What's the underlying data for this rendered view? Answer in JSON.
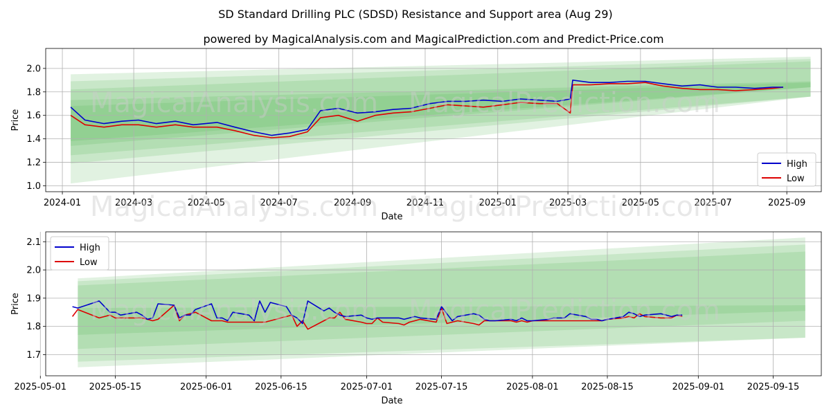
{
  "title": "SD Standard Drilling PLC (SDSD) Resistance and Support area (Aug 29)",
  "subtitle": "powered by MagicalAnalysis.com and MagicalPrediction.com and Predict-Price.com",
  "watermarks": [
    "MagicalAnalysis.com",
    "MagicalPrediction.com"
  ],
  "colors": {
    "high": "#0000cc",
    "low": "#dd0000",
    "band": "#4caf50",
    "grid": "#b0b0b0",
    "bg": "#ffffff"
  },
  "chart_data": [
    {
      "type": "line",
      "xlabel": "Date",
      "ylabel": "Price",
      "xlim": [
        "2023-12-18",
        "2025-09-30"
      ],
      "ylim": [
        0.95,
        2.17
      ],
      "xticks": [
        "2024-01",
        "2024-03",
        "2024-05",
        "2024-07",
        "2024-09",
        "2024-11",
        "2025-01",
        "2025-03",
        "2025-05",
        "2025-07",
        "2025-09"
      ],
      "yticks": [
        "1.0",
        "1.2",
        "1.4",
        "1.6",
        "1.8",
        "2.0"
      ],
      "legend": {
        "position": "bottom-right",
        "entries": [
          "High",
          "Low"
        ]
      },
      "grid": true,
      "bands": [
        {
          "start": "2024-01-08",
          "end": "2025-09-21",
          "y0": [
            1.02,
            1.95,
            1.76,
            2.1
          ]
        },
        {
          "start": "2024-01-08",
          "end": "2025-09-21",
          "y0": [
            1.19,
            1.89,
            1.76,
            2.08
          ]
        },
        {
          "start": "2024-01-08",
          "end": "2025-09-21",
          "y0": [
            1.26,
            1.82,
            1.76,
            2.06
          ]
        },
        {
          "start": "2024-01-08",
          "end": "2025-09-21",
          "y0": [
            1.34,
            1.73,
            1.84,
            1.89
          ]
        },
        {
          "start": "2024-01-08",
          "end": "2025-09-21",
          "y0": [
            1.38,
            1.68,
            1.84,
            1.88
          ]
        }
      ],
      "series": [
        {
          "name": "High",
          "x": [
            "2024-01-08",
            "2024-01-20",
            "2024-02-05",
            "2024-02-20",
            "2024-03-05",
            "2024-03-20",
            "2024-04-05",
            "2024-04-20",
            "2024-05-10",
            "2024-05-25",
            "2024-06-10",
            "2024-06-25",
            "2024-07-10",
            "2024-07-25",
            "2024-08-05",
            "2024-08-20",
            "2024-09-05",
            "2024-09-20",
            "2024-10-05",
            "2024-10-20",
            "2024-11-05",
            "2024-11-20",
            "2024-12-05",
            "2024-12-20",
            "2025-01-05",
            "2025-01-20",
            "2025-02-05",
            "2025-02-20",
            "2025-03-03",
            "2025-03-05",
            "2025-03-20",
            "2025-04-05",
            "2025-04-20",
            "2025-05-05",
            "2025-05-20",
            "2025-06-05",
            "2025-06-20",
            "2025-07-05",
            "2025-07-20",
            "2025-08-05",
            "2025-08-20",
            "2025-08-29"
          ],
          "values": [
            1.67,
            1.56,
            1.53,
            1.55,
            1.56,
            1.53,
            1.55,
            1.52,
            1.54,
            1.5,
            1.46,
            1.43,
            1.45,
            1.48,
            1.64,
            1.66,
            1.62,
            1.63,
            1.65,
            1.66,
            1.7,
            1.72,
            1.72,
            1.73,
            1.72,
            1.74,
            1.73,
            1.72,
            1.74,
            1.9,
            1.88,
            1.88,
            1.89,
            1.89,
            1.87,
            1.85,
            1.86,
            1.84,
            1.84,
            1.83,
            1.84,
            1.84
          ]
        },
        {
          "name": "Low",
          "x": [
            "2024-01-08",
            "2024-01-20",
            "2024-02-05",
            "2024-02-20",
            "2024-03-05",
            "2024-03-20",
            "2024-04-05",
            "2024-04-20",
            "2024-05-10",
            "2024-05-25",
            "2024-06-10",
            "2024-06-25",
            "2024-07-10",
            "2024-07-25",
            "2024-08-05",
            "2024-08-20",
            "2024-09-05",
            "2024-09-20",
            "2024-10-05",
            "2024-10-20",
            "2024-11-05",
            "2024-11-20",
            "2024-12-05",
            "2024-12-20",
            "2025-01-05",
            "2025-01-20",
            "2025-02-05",
            "2025-02-20",
            "2025-03-03",
            "2025-03-05",
            "2025-03-20",
            "2025-04-05",
            "2025-04-20",
            "2025-05-05",
            "2025-05-20",
            "2025-06-05",
            "2025-06-20",
            "2025-07-05",
            "2025-07-20",
            "2025-08-05",
            "2025-08-20",
            "2025-08-29"
          ],
          "values": [
            1.6,
            1.52,
            1.5,
            1.52,
            1.52,
            1.5,
            1.52,
            1.5,
            1.5,
            1.47,
            1.43,
            1.41,
            1.42,
            1.46,
            1.58,
            1.6,
            1.55,
            1.6,
            1.62,
            1.63,
            1.66,
            1.69,
            1.68,
            1.67,
            1.69,
            1.71,
            1.7,
            1.7,
            1.62,
            1.86,
            1.86,
            1.87,
            1.87,
            1.88,
            1.85,
            1.83,
            1.82,
            1.82,
            1.81,
            1.82,
            1.83,
            1.84
          ]
        }
      ]
    },
    {
      "type": "line",
      "xlabel": "Date",
      "ylabel": "Price",
      "xlim": [
        "2025-05-02",
        "2025-09-24"
      ],
      "ylim": [
        1.625,
        2.135
      ],
      "xticks": [
        "2025-05-01",
        "2025-05-15",
        "2025-06-01",
        "2025-06-15",
        "2025-07-01",
        "2025-07-15",
        "2025-08-01",
        "2025-08-15",
        "2025-09-01",
        "2025-09-15"
      ],
      "yticks": [
        "1.7",
        "1.8",
        "1.9",
        "2.0",
        "2.1"
      ],
      "legend": {
        "position": "top-left",
        "entries": [
          "High",
          "Low"
        ]
      },
      "grid": true,
      "bands": [
        {
          "start": "2025-05-08",
          "end": "2025-09-21",
          "y0": [
            1.655,
            1.97,
            1.76,
            2.115
          ]
        },
        {
          "start": "2025-05-08",
          "end": "2025-09-21",
          "y0": [
            1.675,
            1.96,
            1.76,
            2.09
          ]
        },
        {
          "start": "2025-05-08",
          "end": "2025-09-21",
          "y0": [
            1.72,
            1.945,
            1.82,
            2.065
          ]
        },
        {
          "start": "2025-05-08",
          "end": "2025-09-21",
          "y0": [
            1.77,
            1.865,
            1.855,
            1.875
          ]
        }
      ],
      "series": [
        {
          "name": "High",
          "x": [
            "2025-05-07",
            "2025-05-08",
            "2025-05-12",
            "2025-05-13",
            "2025-05-14",
            "2025-05-15",
            "2025-05-16",
            "2025-05-19",
            "2025-05-20",
            "2025-05-21",
            "2025-05-22",
            "2025-05-23",
            "2025-05-26",
            "2025-05-27",
            "2025-05-28",
            "2025-05-29",
            "2025-05-30",
            "2025-06-02",
            "2025-06-03",
            "2025-06-04",
            "2025-06-05",
            "2025-06-06",
            "2025-06-09",
            "2025-06-10",
            "2025-06-11",
            "2025-06-12",
            "2025-06-13",
            "2025-06-16",
            "2025-06-17",
            "2025-06-18",
            "2025-06-19",
            "2025-06-20",
            "2025-06-23",
            "2025-06-24",
            "2025-06-25",
            "2025-06-26",
            "2025-06-27",
            "2025-06-30",
            "2025-07-01",
            "2025-07-02",
            "2025-07-03",
            "2025-07-04",
            "2025-07-07",
            "2025-07-08",
            "2025-07-09",
            "2025-07-10",
            "2025-07-11",
            "2025-07-14",
            "2025-07-15",
            "2025-07-16",
            "2025-07-17",
            "2025-07-18",
            "2025-07-21",
            "2025-07-22",
            "2025-07-23",
            "2025-07-24",
            "2025-07-25",
            "2025-07-28",
            "2025-07-29",
            "2025-07-30",
            "2025-07-31",
            "2025-08-01",
            "2025-08-04",
            "2025-08-05",
            "2025-08-06",
            "2025-08-07",
            "2025-08-08",
            "2025-08-11",
            "2025-08-12",
            "2025-08-13",
            "2025-08-14",
            "2025-08-15",
            "2025-08-18",
            "2025-08-19",
            "2025-08-20",
            "2025-08-21",
            "2025-08-22",
            "2025-08-25",
            "2025-08-26",
            "2025-08-27",
            "2025-08-28",
            "2025-08-29"
          ],
          "values": [
            1.87,
            1.865,
            1.89,
            1.87,
            1.85,
            1.85,
            1.84,
            1.85,
            1.84,
            1.825,
            1.83,
            1.88,
            1.875,
            1.83,
            1.84,
            1.84,
            1.86,
            1.88,
            1.83,
            1.83,
            1.82,
            1.85,
            1.84,
            1.82,
            1.89,
            1.85,
            1.885,
            1.87,
            1.84,
            1.83,
            1.81,
            1.89,
            1.855,
            1.865,
            1.85,
            1.84,
            1.835,
            1.84,
            1.83,
            1.825,
            1.83,
            1.83,
            1.83,
            1.825,
            1.83,
            1.835,
            1.83,
            1.825,
            1.87,
            1.845,
            1.82,
            1.835,
            1.845,
            1.84,
            1.825,
            1.82,
            1.82,
            1.825,
            1.82,
            1.83,
            1.82,
            1.82,
            1.825,
            1.83,
            1.83,
            1.83,
            1.845,
            1.835,
            1.825,
            1.825,
            1.82,
            1.825,
            1.835,
            1.85,
            1.845,
            1.835,
            1.84,
            1.845,
            1.84,
            1.835,
            1.84,
            1.84
          ]
        },
        {
          "name": "Low",
          "x": [
            "2025-05-07",
            "2025-05-08",
            "2025-05-12",
            "2025-05-13",
            "2025-05-14",
            "2025-05-15",
            "2025-05-16",
            "2025-05-19",
            "2025-05-20",
            "2025-05-21",
            "2025-05-22",
            "2025-05-23",
            "2025-05-26",
            "2025-05-27",
            "2025-05-28",
            "2025-05-29",
            "2025-05-30",
            "2025-06-02",
            "2025-06-03",
            "2025-06-04",
            "2025-06-05",
            "2025-06-06",
            "2025-06-09",
            "2025-06-10",
            "2025-06-11",
            "2025-06-12",
            "2025-06-13",
            "2025-06-16",
            "2025-06-17",
            "2025-06-18",
            "2025-06-19",
            "2025-06-20",
            "2025-06-23",
            "2025-06-24",
            "2025-06-25",
            "2025-06-26",
            "2025-06-27",
            "2025-06-30",
            "2025-07-01",
            "2025-07-02",
            "2025-07-03",
            "2025-07-04",
            "2025-07-07",
            "2025-07-08",
            "2025-07-09",
            "2025-07-10",
            "2025-07-11",
            "2025-07-14",
            "2025-07-15",
            "2025-07-16",
            "2025-07-17",
            "2025-07-18",
            "2025-07-21",
            "2025-07-22",
            "2025-07-23",
            "2025-07-24",
            "2025-07-25",
            "2025-07-28",
            "2025-07-29",
            "2025-07-30",
            "2025-07-31",
            "2025-08-01",
            "2025-08-04",
            "2025-08-05",
            "2025-08-06",
            "2025-08-07",
            "2025-08-08",
            "2025-08-11",
            "2025-08-12",
            "2025-08-13",
            "2025-08-14",
            "2025-08-15",
            "2025-08-18",
            "2025-08-19",
            "2025-08-20",
            "2025-08-21",
            "2025-08-22",
            "2025-08-25",
            "2025-08-26",
            "2025-08-27",
            "2025-08-28",
            "2025-08-29"
          ],
          "values": [
            1.835,
            1.86,
            1.83,
            1.835,
            1.84,
            1.83,
            1.83,
            1.83,
            1.83,
            1.825,
            1.82,
            1.825,
            1.875,
            1.82,
            1.84,
            1.845,
            1.85,
            1.82,
            1.82,
            1.82,
            1.815,
            1.815,
            1.815,
            1.815,
            1.815,
            1.815,
            1.82,
            1.835,
            1.84,
            1.8,
            1.82,
            1.79,
            1.82,
            1.83,
            1.83,
            1.85,
            1.825,
            1.815,
            1.81,
            1.81,
            1.83,
            1.815,
            1.81,
            1.805,
            1.815,
            1.82,
            1.825,
            1.815,
            1.865,
            1.81,
            1.815,
            1.82,
            1.81,
            1.805,
            1.82,
            1.82,
            1.82,
            1.82,
            1.815,
            1.82,
            1.815,
            1.82,
            1.82,
            1.82,
            1.82,
            1.82,
            1.82,
            1.82,
            1.82,
            1.82,
            1.82,
            1.825,
            1.83,
            1.835,
            1.83,
            1.845,
            1.835,
            1.83,
            1.83,
            1.83,
            1.84,
            1.835
          ]
        }
      ]
    }
  ]
}
